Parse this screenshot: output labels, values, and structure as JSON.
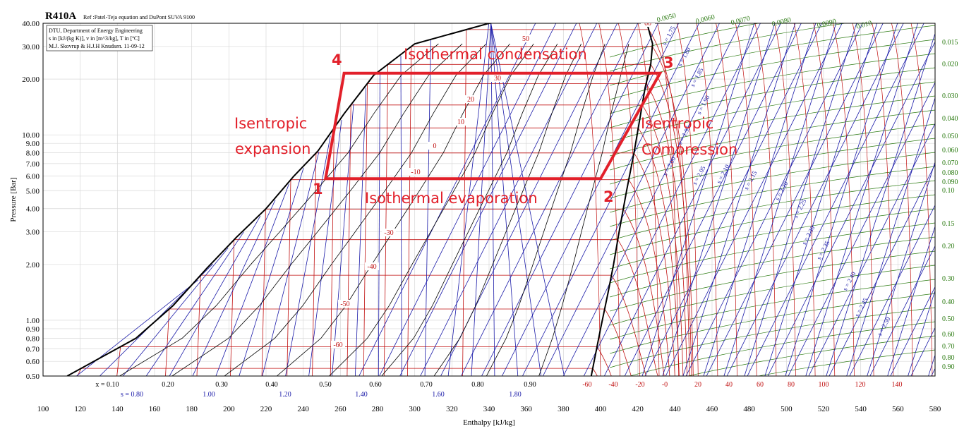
{
  "chart_data": {
    "type": "line",
    "title": "R410A",
    "subtitle": "Ref :Patel-Teja equation and DuPont SUVA 9100",
    "info_lines": [
      "DTU, Department of Energy Engineering",
      "s in [kJ/(kg K)], v in [m^3/kg], T in [ºC]",
      "M.J. Skovrup & H.J.H Knudsen. 11-09-12"
    ],
    "xlabel": "Enthalpy [kJ/kg]",
    "ylabel": "Pressure [Bar]",
    "xlim": [
      100,
      580
    ],
    "ylim": [
      0.5,
      40
    ],
    "yscale": "log",
    "x_ticks": [
      "100",
      "120",
      "140",
      "160",
      "180",
      "200",
      "220",
      "240",
      "260",
      "280",
      "300",
      "320",
      "340",
      "360",
      "380",
      "400",
      "420",
      "440",
      "460",
      "480",
      "500",
      "520",
      "540",
      "560",
      "580"
    ],
    "y_ticks": [
      "0.50",
      "0.60",
      "0.70",
      "0.80",
      "0.90",
      "1.00",
      "2.00",
      "3.00",
      "4.00",
      "5.00",
      "6.00",
      "7.00",
      "8.00",
      "9.00",
      "10.00",
      "20.00",
      "30.00",
      "40.00"
    ],
    "quality_ticks": [
      "x = 0.10",
      "0.20",
      "0.30",
      "0.40",
      "0.50",
      "0.60",
      "0.70",
      "0.80",
      "0.90"
    ],
    "entropy_ticks": [
      "s = 0.80",
      "1.00",
      "1.20",
      "1.40",
      "1.60",
      "1.80"
    ],
    "temp_ticks_bottom": [
      "-60",
      "-40",
      "-20",
      "0",
      "20",
      "40",
      "60",
      "80",
      "100",
      "120",
      "140",
      "-20"
    ],
    "temp_ticks_bottom_list": [
      "-60",
      "-40",
      "-20",
      "-0",
      "20",
      "40",
      "60",
      "80",
      "100",
      "120",
      "140"
    ],
    "volume_ticks_right": [
      "0.015",
      "0.020",
      "0.030",
      "0.040",
      "0.050",
      "0.060",
      "0.070",
      "0.080",
      "0.090",
      "0.10",
      "0.15",
      "0.20",
      "0.30",
      "0.40",
      "0.50",
      "0.60",
      "0.70",
      "0.80",
      "0.90"
    ],
    "volume_ticks_top": [
      "0.0050",
      "0.0060",
      "0.0070",
      "0.0080",
      "0.0090",
      "0.010"
    ],
    "isotherm_labels": [
      "50",
      "30",
      "20",
      "10",
      "0",
      "-10",
      "-30",
      "-40",
      "-50",
      "-60",
      "60"
    ],
    "isentrope_labels": [
      "s = 1.75",
      "s = 1.80",
      "s = 1.85",
      "s = 1.90",
      "s = 1.95",
      "s = 2.00",
      "s = 2.05",
      "s = 2.10",
      "s = 2.15",
      "s = 2.20",
      "s = 2.25",
      "s = 2.30",
      "s = 2.35",
      "s = 2.40",
      "s = 2.45",
      "s = 2.50"
    ],
    "saturation_dome": {
      "liquid": [
        [
          113,
          0.5
        ],
        [
          150,
          0.8
        ],
        [
          170,
          1.2
        ],
        [
          188,
          1.9
        ],
        [
          204,
          2.8
        ],
        [
          220,
          4.0
        ],
        [
          235,
          6.0
        ],
        [
          248,
          8.2
        ],
        [
          262,
          13
        ],
        [
          278,
          21
        ],
        [
          300,
          31
        ],
        [
          340,
          40
        ]
      ],
      "vapor": [
        [
          395,
          0.5
        ],
        [
          400,
          0.9
        ],
        [
          404,
          1.4
        ],
        [
          407,
          2.0
        ],
        [
          410,
          3.0
        ],
        [
          414,
          5.0
        ],
        [
          418,
          8.0
        ],
        [
          421,
          12
        ],
        [
          424,
          18
        ],
        [
          427,
          24
        ],
        [
          428,
          31
        ],
        [
          425,
          40
        ]
      ]
    },
    "cycle": {
      "series": [
        {
          "name": "1",
          "h": 252,
          "p": 5.8
        },
        {
          "name": "2",
          "h": 400,
          "p": 5.8
        },
        {
          "name": "3",
          "h": 432,
          "p": 21.5
        },
        {
          "name": "4",
          "h": 262,
          "p": 21.5
        }
      ],
      "color": "#e2202a"
    },
    "annotations": [
      {
        "text": "Isothermal condensation"
      },
      {
        "text": "Isothermal evaporation"
      },
      {
        "text": "Isentropic"
      },
      {
        "text": "expansion"
      },
      {
        "text": "Isentropic"
      },
      {
        "text": "Compression"
      }
    ],
    "point_labels": [
      "1",
      "2",
      "3",
      "4"
    ],
    "colors": {
      "isotherm": "#c01010",
      "isentrope": "#1a1aa8",
      "isochore": "#2a7a10",
      "quality": "#000000",
      "cycle": "#e2202a"
    }
  }
}
